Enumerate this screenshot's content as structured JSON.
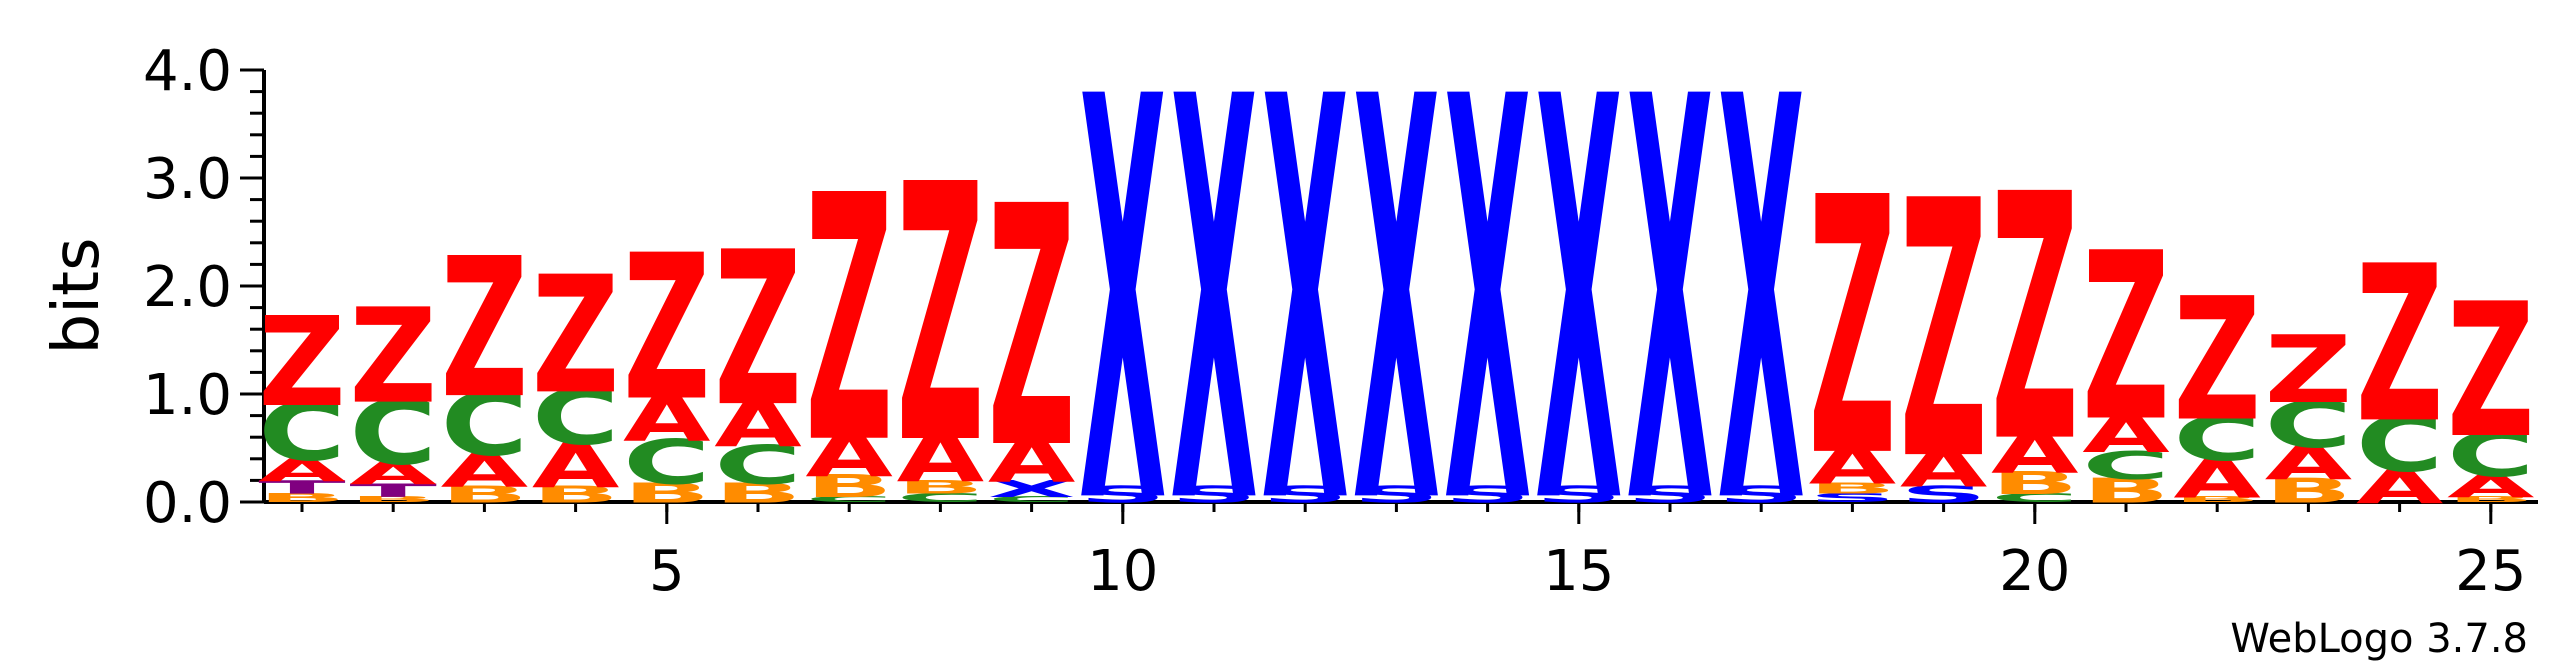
{
  "chart_data": {
    "type": "sequence-logo",
    "ylabel": "bits",
    "ylim": [
      0,
      4.0
    ],
    "yticks": [
      "0.0",
      "1.0",
      "2.0",
      "3.0",
      "4.0"
    ],
    "xticks": [
      5,
      10,
      15,
      20,
      25
    ],
    "credit": "WebLogo 3.7.8",
    "colors": {
      "Z": "#ff0000",
      "A": "#ff0000",
      "C": "#228b22",
      "B": "#ff8c00",
      "T": "#800080",
      "X": "#0000ff",
      "S": "#0000ff"
    },
    "positions": [
      {
        "pos": 1,
        "stack": [
          [
            "B",
            0.08
          ],
          [
            "T",
            0.12
          ],
          [
            "A",
            0.2
          ],
          [
            "C",
            0.52
          ],
          [
            "Z",
            0.8
          ]
        ]
      },
      {
        "pos": 2,
        "stack": [
          [
            "B",
            0.05
          ],
          [
            "T",
            0.12
          ],
          [
            "A",
            0.2
          ],
          [
            "C",
            0.58
          ],
          [
            "Z",
            0.85
          ]
        ]
      },
      {
        "pos": 3,
        "stack": [
          [
            "B",
            0.15
          ],
          [
            "A",
            0.3
          ],
          [
            "C",
            0.57
          ],
          [
            "Z",
            1.25
          ]
        ]
      },
      {
        "pos": 4,
        "stack": [
          [
            "B",
            0.15
          ],
          [
            "A",
            0.4
          ],
          [
            "C",
            0.5
          ],
          [
            "Z",
            1.05
          ]
        ]
      },
      {
        "pos": 5,
        "stack": [
          [
            "B",
            0.18
          ],
          [
            "C",
            0.4
          ],
          [
            "A",
            0.42
          ],
          [
            "Z",
            1.3
          ]
        ]
      },
      {
        "pos": 6,
        "stack": [
          [
            "B",
            0.18
          ],
          [
            "C",
            0.35
          ],
          [
            "A",
            0.42
          ],
          [
            "Z",
            1.38
          ]
        ]
      },
      {
        "pos": 7,
        "stack": [
          [
            "C",
            0.05
          ],
          [
            "B",
            0.2
          ],
          [
            "A",
            0.4
          ],
          [
            "Z",
            2.2
          ]
        ]
      },
      {
        "pos": 8,
        "stack": [
          [
            "C",
            0.08
          ],
          [
            "B",
            0.12
          ],
          [
            "A",
            0.45
          ],
          [
            "Z",
            2.3
          ]
        ]
      },
      {
        "pos": 9,
        "stack": [
          [
            "C",
            0.05
          ],
          [
            "X",
            0.15
          ],
          [
            "A",
            0.4
          ],
          [
            "Z",
            2.15
          ]
        ]
      },
      {
        "pos": 10,
        "stack": [
          [
            "S",
            0.15
          ],
          [
            "X",
            3.6
          ]
        ]
      },
      {
        "pos": 11,
        "stack": [
          [
            "S",
            0.15
          ],
          [
            "X",
            3.6
          ]
        ]
      },
      {
        "pos": 12,
        "stack": [
          [
            "S",
            0.15
          ],
          [
            "X",
            3.6
          ]
        ]
      },
      {
        "pos": 13,
        "stack": [
          [
            "S",
            0.15
          ],
          [
            "X",
            3.6
          ]
        ]
      },
      {
        "pos": 14,
        "stack": [
          [
            "S",
            0.15
          ],
          [
            "X",
            3.6
          ]
        ]
      },
      {
        "pos": 15,
        "stack": [
          [
            "S",
            0.15
          ],
          [
            "X",
            3.6
          ]
        ]
      },
      {
        "pos": 16,
        "stack": [
          [
            "S",
            0.15
          ],
          [
            "X",
            3.6
          ]
        ]
      },
      {
        "pos": 17,
        "stack": [
          [
            "S",
            0.15
          ],
          [
            "X",
            3.6
          ]
        ]
      },
      {
        "pos": 18,
        "stack": [
          [
            "S",
            0.08
          ],
          [
            "B",
            0.1
          ],
          [
            "A",
            0.35
          ],
          [
            "Z",
            2.3
          ]
        ]
      },
      {
        "pos": 19,
        "stack": [
          [
            "S",
            0.15
          ],
          [
            "A",
            0.35
          ],
          [
            "Z",
            2.3
          ]
        ]
      },
      {
        "pos": 20,
        "stack": [
          [
            "C",
            0.08
          ],
          [
            "B",
            0.2
          ],
          [
            "A",
            0.38
          ],
          [
            "Z",
            2.2
          ]
        ]
      },
      {
        "pos": 21,
        "stack": [
          [
            "B",
            0.22
          ],
          [
            "C",
            0.25
          ],
          [
            "A",
            0.35
          ],
          [
            "Z",
            1.5
          ]
        ]
      },
      {
        "pos": 22,
        "stack": [
          [
            "B",
            0.05
          ],
          [
            "A",
            0.35
          ],
          [
            "C",
            0.4
          ],
          [
            "Z",
            1.1
          ]
        ]
      },
      {
        "pos": 23,
        "stack": [
          [
            "B",
            0.22
          ],
          [
            "A",
            0.3
          ],
          [
            "C",
            0.42
          ],
          [
            "Z",
            0.6
          ]
        ]
      },
      {
        "pos": 24,
        "stack": [
          [
            "A",
            0.3
          ],
          [
            "C",
            0.5
          ],
          [
            "Z",
            1.4
          ]
        ]
      },
      {
        "pos": 25,
        "stack": [
          [
            "B",
            0.05
          ],
          [
            "A",
            0.2
          ],
          [
            "C",
            0.4
          ],
          [
            "Z",
            1.2
          ]
        ]
      }
    ]
  }
}
